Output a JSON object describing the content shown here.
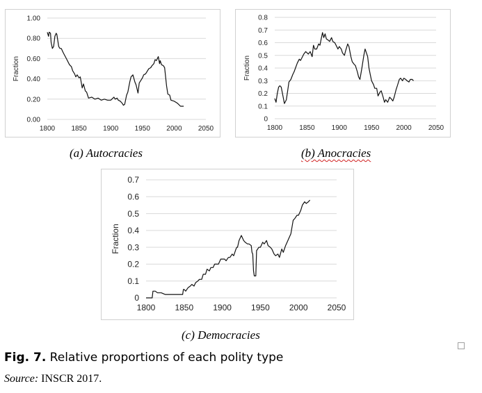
{
  "chart_data": [
    {
      "id": "autocracies",
      "type": "line",
      "caption": "(a) Autocracies",
      "ylabel": "Fraction",
      "xlim": [
        1800,
        2050
      ],
      "ylim": [
        0,
        1
      ],
      "grid": "horizontal",
      "x_ticks": [
        "1800",
        "1850",
        "1900",
        "1950",
        "2000",
        "2050"
      ],
      "y_ticks": [
        "0.00",
        "0.20",
        "0.40",
        "0.60",
        "0.80",
        "1.00"
      ],
      "x": [
        1800,
        1802,
        1803,
        1805,
        1806,
        1808,
        1810,
        1812,
        1814,
        1815,
        1818,
        1820,
        1822,
        1825,
        1830,
        1835,
        1838,
        1840,
        1843,
        1845,
        1847,
        1850,
        1852,
        1855,
        1857,
        1860,
        1862,
        1865,
        1870,
        1875,
        1880,
        1885,
        1890,
        1895,
        1900,
        1905,
        1907,
        1910,
        1912,
        1915,
        1918,
        1920,
        1922,
        1925,
        1927,
        1930,
        1932,
        1935,
        1938,
        1940,
        1943,
        1945,
        1948,
        1950,
        1952,
        1955,
        1958,
        1960,
        1963,
        1965,
        1968,
        1970,
        1972,
        1975,
        1977,
        1978,
        1980,
        1983,
        1985,
        1988,
        1990,
        1993,
        1995,
        2000,
        2005,
        2010,
        2015
      ],
      "y": [
        0.86,
        0.82,
        0.86,
        0.85,
        0.76,
        0.7,
        0.72,
        0.82,
        0.85,
        0.84,
        0.72,
        0.7,
        0.7,
        0.66,
        0.6,
        0.54,
        0.52,
        0.48,
        0.45,
        0.42,
        0.44,
        0.41,
        0.42,
        0.31,
        0.35,
        0.28,
        0.27,
        0.21,
        0.22,
        0.2,
        0.21,
        0.19,
        0.2,
        0.19,
        0.19,
        0.22,
        0.2,
        0.21,
        0.19,
        0.18,
        0.16,
        0.14,
        0.15,
        0.24,
        0.27,
        0.37,
        0.42,
        0.44,
        0.37,
        0.34,
        0.26,
        0.36,
        0.39,
        0.41,
        0.44,
        0.45,
        0.48,
        0.5,
        0.51,
        0.53,
        0.55,
        0.59,
        0.58,
        0.62,
        0.55,
        0.58,
        0.54,
        0.53,
        0.51,
        0.33,
        0.25,
        0.24,
        0.19,
        0.18,
        0.16,
        0.13,
        0.13
      ]
    },
    {
      "id": "anocracies",
      "type": "line",
      "caption": "(b) Anocracies",
      "ylabel": "Fraction",
      "xlim": [
        1800,
        2050
      ],
      "ylim": [
        0,
        0.8
      ],
      "grid": "horizontal",
      "x_ticks": [
        "1800",
        "1850",
        "1900",
        "1950",
        "2000",
        "2050"
      ],
      "y_ticks": [
        "0",
        "0.1",
        "0.2",
        "0.3",
        "0.4",
        "0.5",
        "0.6",
        "0.7",
        "0.8"
      ],
      "x": [
        1800,
        1802,
        1804,
        1806,
        1808,
        1810,
        1812,
        1815,
        1818,
        1820,
        1822,
        1825,
        1828,
        1830,
        1835,
        1838,
        1840,
        1843,
        1845,
        1848,
        1850,
        1852,
        1855,
        1858,
        1860,
        1862,
        1865,
        1868,
        1870,
        1872,
        1874,
        1876,
        1878,
        1880,
        1883,
        1885,
        1888,
        1890,
        1893,
        1895,
        1898,
        1900,
        1903,
        1905,
        1908,
        1910,
        1913,
        1915,
        1918,
        1920,
        1923,
        1925,
        1928,
        1930,
        1932,
        1935,
        1938,
        1940,
        1942,
        1944,
        1946,
        1948,
        1950,
        1953,
        1955,
        1958,
        1960,
        1963,
        1965,
        1968,
        1970,
        1972,
        1975,
        1978,
        1980,
        1983,
        1985,
        1988,
        1990,
        1993,
        1995,
        1998,
        2000,
        2003,
        2005,
        2008,
        2010,
        2013,
        2015
      ],
      "y": [
        0.16,
        0.13,
        0.2,
        0.25,
        0.26,
        0.25,
        0.2,
        0.12,
        0.15,
        0.22,
        0.29,
        0.31,
        0.35,
        0.37,
        0.44,
        0.47,
        0.46,
        0.49,
        0.51,
        0.53,
        0.52,
        0.51,
        0.53,
        0.49,
        0.58,
        0.55,
        0.55,
        0.59,
        0.58,
        0.63,
        0.68,
        0.64,
        0.67,
        0.63,
        0.62,
        0.61,
        0.64,
        0.61,
        0.6,
        0.58,
        0.55,
        0.57,
        0.55,
        0.52,
        0.5,
        0.54,
        0.59,
        0.57,
        0.49,
        0.45,
        0.43,
        0.42,
        0.37,
        0.33,
        0.31,
        0.4,
        0.5,
        0.55,
        0.52,
        0.49,
        0.4,
        0.35,
        0.3,
        0.27,
        0.24,
        0.24,
        0.18,
        0.21,
        0.22,
        0.17,
        0.13,
        0.15,
        0.13,
        0.17,
        0.16,
        0.14,
        0.17,
        0.23,
        0.26,
        0.31,
        0.32,
        0.3,
        0.32,
        0.31,
        0.3,
        0.29,
        0.31,
        0.31,
        0.3
      ]
    },
    {
      "id": "democracies",
      "type": "line",
      "caption": "(c) Democracies",
      "ylabel": "Fraction",
      "xlim": [
        1800,
        2050
      ],
      "ylim": [
        0,
        0.7
      ],
      "grid": "horizontal",
      "x_ticks": [
        "1800",
        "1850",
        "1900",
        "1950",
        "2000",
        "2050"
      ],
      "y_ticks": [
        "0",
        "0.1",
        "0.2",
        "0.3",
        "0.4",
        "0.5",
        "0.6",
        "0.7"
      ],
      "x": [
        1800,
        1805,
        1808,
        1809,
        1810,
        1812,
        1815,
        1820,
        1825,
        1830,
        1835,
        1840,
        1845,
        1848,
        1849,
        1850,
        1852,
        1855,
        1858,
        1860,
        1863,
        1865,
        1868,
        1870,
        1873,
        1875,
        1878,
        1880,
        1883,
        1885,
        1888,
        1890,
        1893,
        1895,
        1898,
        1900,
        1903,
        1905,
        1908,
        1910,
        1913,
        1915,
        1918,
        1919,
        1920,
        1922,
        1925,
        1928,
        1930,
        1933,
        1935,
        1938,
        1939,
        1940,
        1941,
        1942,
        1943,
        1944,
        1945,
        1948,
        1950,
        1953,
        1955,
        1958,
        1960,
        1963,
        1965,
        1968,
        1970,
        1973,
        1975,
        1978,
        1980,
        1983,
        1985,
        1988,
        1990,
        1993,
        1995,
        1998,
        2000,
        2003,
        2005,
        2008,
        2010,
        2013,
        2015
      ],
      "y": [
        0.0,
        0.0,
        0.0,
        0.04,
        0.04,
        0.04,
        0.03,
        0.03,
        0.02,
        0.02,
        0.02,
        0.02,
        0.02,
        0.02,
        0.05,
        0.05,
        0.04,
        0.06,
        0.07,
        0.08,
        0.07,
        0.09,
        0.1,
        0.11,
        0.11,
        0.14,
        0.14,
        0.17,
        0.16,
        0.18,
        0.18,
        0.2,
        0.2,
        0.2,
        0.23,
        0.23,
        0.23,
        0.22,
        0.24,
        0.24,
        0.26,
        0.25,
        0.29,
        0.3,
        0.3,
        0.34,
        0.37,
        0.34,
        0.33,
        0.32,
        0.32,
        0.31,
        0.27,
        0.26,
        0.16,
        0.13,
        0.13,
        0.13,
        0.28,
        0.3,
        0.3,
        0.33,
        0.32,
        0.34,
        0.31,
        0.3,
        0.29,
        0.26,
        0.25,
        0.26,
        0.24,
        0.29,
        0.27,
        0.31,
        0.33,
        0.36,
        0.38,
        0.46,
        0.47,
        0.49,
        0.49,
        0.52,
        0.55,
        0.57,
        0.56,
        0.57,
        0.58
      ]
    }
  ],
  "figure": {
    "label": "Fig. 7.",
    "caption": " Relative proportions of each polity type",
    "source_label": "Source:",
    "source_text": " INSCR 2017."
  }
}
